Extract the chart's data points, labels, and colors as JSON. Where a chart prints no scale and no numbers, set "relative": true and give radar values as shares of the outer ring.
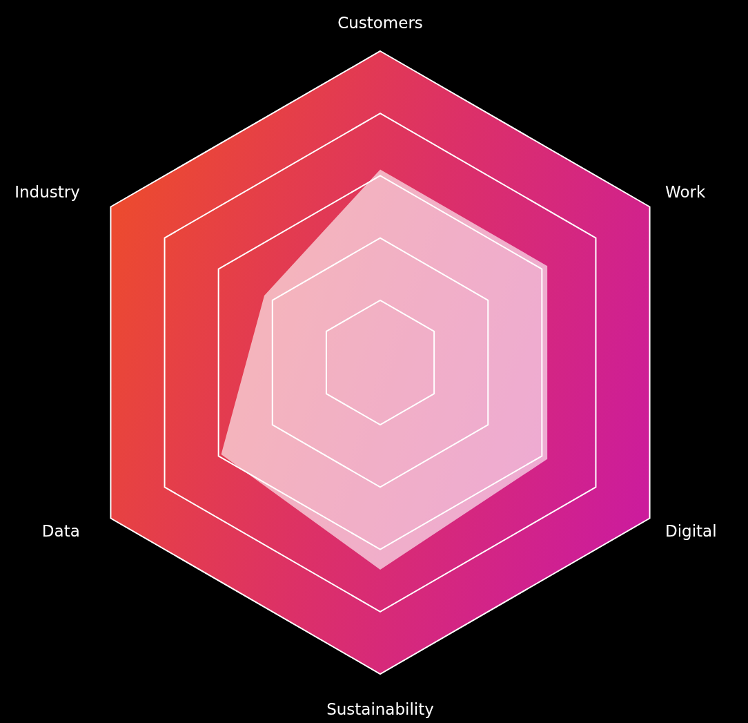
{
  "chart_data": {
    "type": "radar",
    "relative": true,
    "grid": true,
    "categories": [
      "Customers",
      "Work",
      "Digital",
      "Sustainability",
      "Data",
      "Industry"
    ],
    "series": [
      {
        "color": "#ffffff",
        "values": [
          0.62,
          0.62,
          0.62,
          0.665,
          0.59,
          0.43
        ]
      }
    ]
  }
}
